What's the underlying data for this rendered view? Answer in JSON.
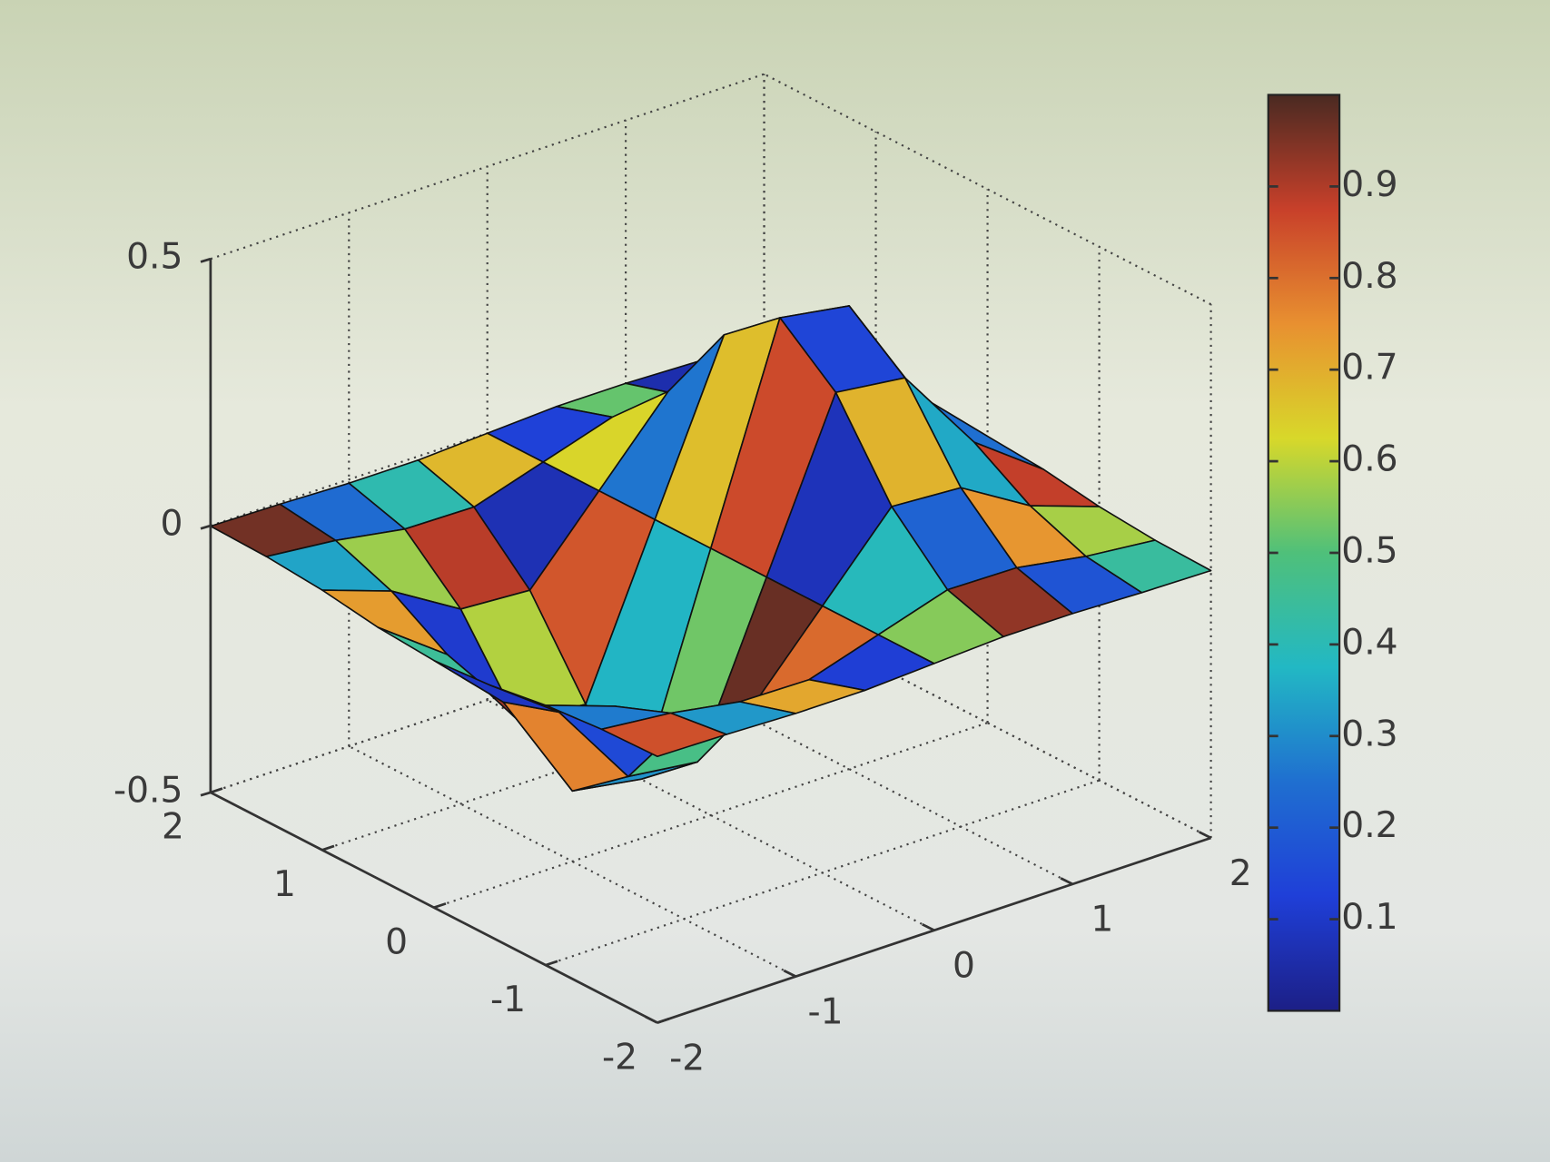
{
  "chart_data": {
    "type": "surface",
    "x": [
      -2,
      -1.5,
      -1,
      -0.5,
      0,
      0.5,
      1,
      1.5,
      2
    ],
    "y": [
      -2,
      -1.5,
      -1,
      -0.5,
      0,
      0.5,
      1,
      1.5,
      2
    ],
    "z": [
      [
        -0.001,
        -0.003,
        -0.007,
        -0.007,
        0,
        0.007,
        0.007,
        0.003,
        0.001
      ],
      [
        -0.004,
        -0.017,
        -0.039,
        -0.041,
        0,
        0.041,
        0.039,
        0.017,
        0.004
      ],
      [
        -0.013,
        -0.058,
        -0.135,
        -0.143,
        0,
        0.143,
        0.135,
        0.058,
        0.013
      ],
      [
        -0.029,
        -0.123,
        -0.287,
        -0.303,
        0,
        0.303,
        0.287,
        0.123,
        0.029
      ],
      [
        -0.037,
        -0.158,
        -0.368,
        -0.389,
        0,
        0.389,
        0.368,
        0.158,
        0.037
      ],
      [
        -0.029,
        -0.123,
        -0.287,
        -0.303,
        0,
        0.303,
        0.287,
        0.123,
        0.029
      ],
      [
        -0.013,
        -0.058,
        -0.135,
        -0.143,
        0,
        0.143,
        0.135,
        0.058,
        0.013
      ],
      [
        -0.004,
        -0.017,
        -0.039,
        -0.041,
        0,
        0.041,
        0.039,
        0.017,
        0.004
      ],
      [
        -0.001,
        -0.003,
        -0.007,
        -0.007,
        0,
        0.007,
        0.007,
        0.003,
        0.001
      ]
    ],
    "c": [
      [
        0.85,
        0.32,
        0.71,
        0.12,
        0.55,
        0.93,
        0.18,
        0.44
      ],
      [
        0.27,
        0.66,
        0.05,
        0.81,
        0.39,
        0.22,
        0.74,
        0.58
      ],
      [
        0.62,
        0.15,
        0.48,
        0.97,
        0.08,
        0.69,
        0.35,
        0.88
      ],
      [
        0.09,
        0.77,
        0.31,
        0.53,
        0.86,
        0.14,
        0.61,
        0.25
      ],
      [
        0.45,
        0.91,
        0.21,
        0.37,
        0.67,
        0.03,
        0.82,
        0.51
      ],
      [
        0.73,
        0.11,
        0.59,
        0.84,
        0.26,
        0.47,
        0.95,
        0.16
      ],
      [
        0.34,
        0.57,
        0.89,
        0.07,
        0.63,
        0.78,
        0.29,
        0.42
      ],
      [
        0.96,
        0.24,
        0.41,
        0.68,
        0.13,
        0.52,
        0.06,
        0.79
      ]
    ],
    "xlim": [
      -2,
      2
    ],
    "ylim": [
      -2,
      2
    ],
    "zlim": [
      -0.5,
      0.5
    ],
    "xticks": [
      -2,
      -1,
      0,
      1,
      2
    ],
    "yticks": [
      -2,
      -1,
      0,
      1,
      2
    ],
    "zticks": [
      -0.5,
      0,
      0.5
    ],
    "grid": true,
    "colorbar": {
      "clim": [
        0,
        1
      ],
      "ticks": [
        0.1,
        0.2,
        0.3,
        0.4,
        0.5,
        0.6,
        0.7,
        0.8,
        0.9
      ],
      "colormap": [
        "#1c1f86",
        "#1f3fd8",
        "#1f6fd0",
        "#22b8c4",
        "#4fc07a",
        "#d8d82a",
        "#e89030",
        "#c8402a",
        "#4a2a22"
      ]
    }
  }
}
